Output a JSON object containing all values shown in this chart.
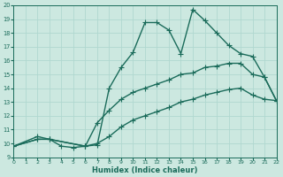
{
  "xlabel": "Humidex (Indice chaleur)",
  "xlim": [
    0,
    22
  ],
  "ylim": [
    9,
    20
  ],
  "xticks": [
    0,
    1,
    2,
    3,
    4,
    5,
    6,
    7,
    8,
    9,
    10,
    11,
    12,
    13,
    14,
    15,
    16,
    17,
    18,
    19,
    20,
    21,
    22
  ],
  "yticks": [
    9,
    10,
    11,
    12,
    13,
    14,
    15,
    16,
    17,
    18,
    19,
    20
  ],
  "bg_color": "#cce8e0",
  "line_color": "#1a6b5a",
  "grid_color": "#b0d8d0",
  "line1_x": [
    0,
    2,
    3,
    4,
    5,
    6,
    7,
    8,
    9,
    10,
    11,
    12,
    13,
    14,
    15,
    16,
    17,
    18,
    19,
    20,
    21,
    22
  ],
  "line1_y": [
    9.8,
    10.5,
    10.3,
    9.8,
    9.7,
    9.8,
    9.9,
    14.0,
    15.5,
    16.6,
    18.75,
    18.75,
    18.2,
    16.5,
    19.7,
    18.9,
    18.0,
    17.1,
    16.5,
    16.3,
    14.8,
    13.1
  ],
  "line2_x": [
    0,
    2,
    3,
    6,
    7,
    8,
    9,
    10,
    11,
    12,
    13,
    14,
    15,
    16,
    17,
    18,
    19,
    20,
    21,
    22
  ],
  "line2_y": [
    9.8,
    10.3,
    10.3,
    9.8,
    11.5,
    12.4,
    13.2,
    13.7,
    14.0,
    14.3,
    14.6,
    15.0,
    15.1,
    15.5,
    15.6,
    15.8,
    15.8,
    15.0,
    14.8,
    13.1
  ],
  "line3_x": [
    0,
    2,
    3,
    6,
    7,
    8,
    9,
    10,
    11,
    12,
    13,
    14,
    15,
    16,
    17,
    18,
    19,
    20,
    21,
    22
  ],
  "line3_y": [
    9.8,
    10.3,
    10.3,
    9.8,
    10.0,
    10.5,
    11.2,
    11.7,
    12.0,
    12.3,
    12.6,
    13.0,
    13.2,
    13.5,
    13.7,
    13.9,
    14.0,
    13.5,
    13.2,
    13.1
  ]
}
